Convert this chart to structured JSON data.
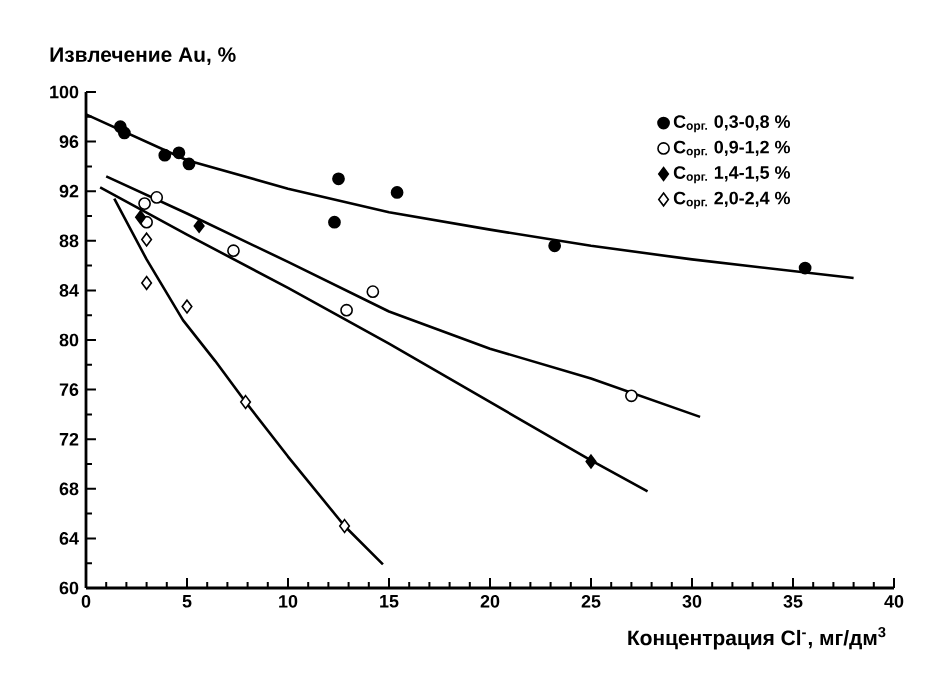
{
  "chart_data": {
    "type": "scatter",
    "ylabel": "Извлечение Au, %",
    "xlabel": "Концентрация Cl$^{-}$, мг/дм$^{3}$",
    "xlim": [
      0,
      40
    ],
    "xticks": [
      0,
      5,
      10,
      15,
      20,
      25,
      30,
      35,
      40
    ],
    "ylim": [
      60,
      100
    ],
    "yticks": [
      60,
      64,
      68,
      72,
      76,
      80,
      84,
      88,
      92,
      96,
      100
    ],
    "legend": "top right",
    "grid": false,
    "series": [
      {
        "name": "C$_{орг.}$ 0,3-0,8 %",
        "color": "#000000",
        "marker": "circle",
        "x": [
          1.7,
          1.9,
          3.9,
          4.6,
          5.1,
          12.5,
          12.3,
          15.4,
          23.2,
          35.6
        ],
        "values": [
          97.2,
          96.7,
          94.9,
          95.1,
          94.2,
          93.0,
          89.5,
          91.9,
          87.6,
          85.8
        ]
      },
      {
        "name": "C$_{орг.}$ 0,9-1,2 %",
        "color": "#ffffff",
        "marker": "circle",
        "x": [
          2.9,
          3.0,
          3.5,
          7.3,
          12.9,
          14.2,
          27.0
        ],
        "values": [
          91.0,
          89.5,
          91.5,
          87.2,
          82.4,
          83.9,
          75.5
        ]
      },
      {
        "name": "C$_{орг.}$ 1,4-1,5 %",
        "color": "#000000",
        "marker": "diamond",
        "x": [
          2.7,
          5.6,
          25.0
        ],
        "values": [
          89.9,
          89.2,
          70.2
        ]
      },
      {
        "name": "C$_{орг.}$ 2,0-2,4 %",
        "color": "#ffffff",
        "marker": "diamond",
        "x": [
          3.0,
          3.0,
          5.0,
          7.9,
          12.8
        ],
        "values": [
          88.1,
          84.6,
          82.7,
          75.0,
          65.0
        ]
      },
      {
        "type": "line",
        "color": "#000000",
        "marker": "none",
        "x": [
          0,
          5,
          10,
          15,
          20,
          25,
          30,
          38
        ],
        "values": [
          98.2,
          94.5,
          92.2,
          90.3,
          88.9,
          87.6,
          86.5,
          85.0
        ]
      },
      {
        "type": "line",
        "color": "#000000",
        "marker": "none",
        "x": [
          1,
          5,
          10,
          15,
          20,
          25,
          30.4
        ],
        "values": [
          93.2,
          90.2,
          86.3,
          82.3,
          79.3,
          76.9,
          73.8
        ]
      },
      {
        "type": "line",
        "color": "#000000",
        "marker": "none",
        "x": [
          0.7,
          5,
          10,
          15,
          20,
          25,
          27.8
        ],
        "values": [
          92.3,
          88.5,
          84.2,
          79.7,
          75.0,
          70.3,
          67.8
        ]
      },
      {
        "type": "line",
        "color": "#000000",
        "marker": "none",
        "x": [
          1.4,
          3,
          4.8,
          6.4,
          7.9,
          10,
          12.8,
          14.7
        ],
        "values": [
          91.4,
          86.5,
          81.6,
          78.3,
          75.0,
          70.6,
          65.0,
          61.9
        ]
      }
    ]
  }
}
